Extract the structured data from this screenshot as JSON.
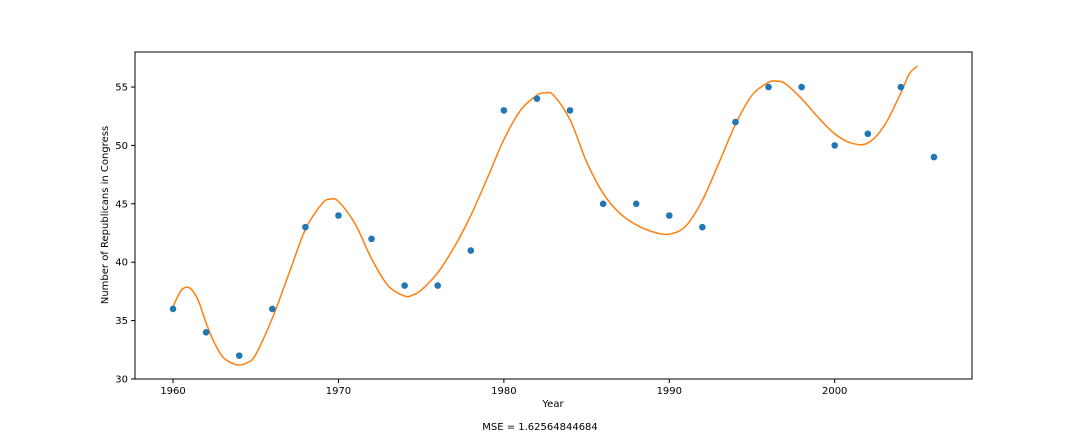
{
  "chart_data": {
    "type": "scatter",
    "title": "",
    "xlabel": "Year",
    "ylabel": "Number of Republicans in Congress",
    "xlim": [
      1957.7,
      2008.3
    ],
    "ylim": [
      30,
      58
    ],
    "x_ticks": [
      1960,
      1970,
      1980,
      1990,
      2000
    ],
    "y_ticks": [
      30,
      35,
      40,
      45,
      50,
      55
    ],
    "grid": false,
    "series": [
      {
        "kind": "points",
        "color": "#1f77b4",
        "x": [
          1960,
          1962,
          1964,
          1966,
          1968,
          1970,
          1972,
          1974,
          1976,
          1978,
          1980,
          1982,
          1984,
          1986,
          1988,
          1990,
          1992,
          1994,
          1996,
          1998,
          2000,
          2002,
          2004,
          2006
        ],
        "y": [
          36,
          34,
          32,
          36,
          43,
          44,
          42,
          38,
          38,
          41,
          53,
          54,
          53,
          45,
          45,
          44,
          43,
          52,
          55,
          55,
          50,
          51,
          55,
          49
        ]
      },
      {
        "kind": "fit-curve",
        "color": "#ff7f0e",
        "x": [
          1960,
          1960.5,
          1961,
          1961.5,
          1962,
          1962.5,
          1963,
          1963.5,
          1964,
          1964.5,
          1965,
          1966,
          1967,
          1968,
          1969,
          1969.5,
          1970,
          1971,
          1972,
          1973,
          1974,
          1974.5,
          1975,
          1976,
          1977,
          1978,
          1979,
          1980,
          1981,
          1982,
          1982.5,
          1983,
          1984,
          1985,
          1986,
          1987,
          1988,
          1989,
          1990,
          1991,
          1992,
          1993,
          1994,
          1995,
          1996,
          1996.5,
          1997,
          1998,
          1999,
          2000,
          2001,
          2002,
          2003,
          2004,
          2004.5,
          2005
        ],
        "y": [
          36.2,
          37.6,
          37.8,
          36.8,
          34.8,
          33.1,
          31.9,
          31.4,
          31.2,
          31.4,
          32.1,
          35.2,
          39.0,
          42.8,
          45.0,
          45.4,
          45.2,
          43.3,
          40.3,
          38.0,
          37.1,
          37.2,
          37.6,
          39.1,
          41.3,
          44.0,
          47.2,
          50.5,
          53.0,
          54.3,
          54.5,
          54.3,
          52.2,
          48.6,
          45.9,
          44.2,
          43.2,
          42.6,
          42.4,
          43.1,
          45.3,
          48.5,
          51.8,
          54.3,
          55.4,
          55.5,
          55.3,
          54.0,
          52.4,
          51.0,
          50.2,
          50.2,
          51.7,
          54.5,
          56.1,
          56.8
        ]
      }
    ]
  },
  "caption": "MSE = 1.62564844684"
}
